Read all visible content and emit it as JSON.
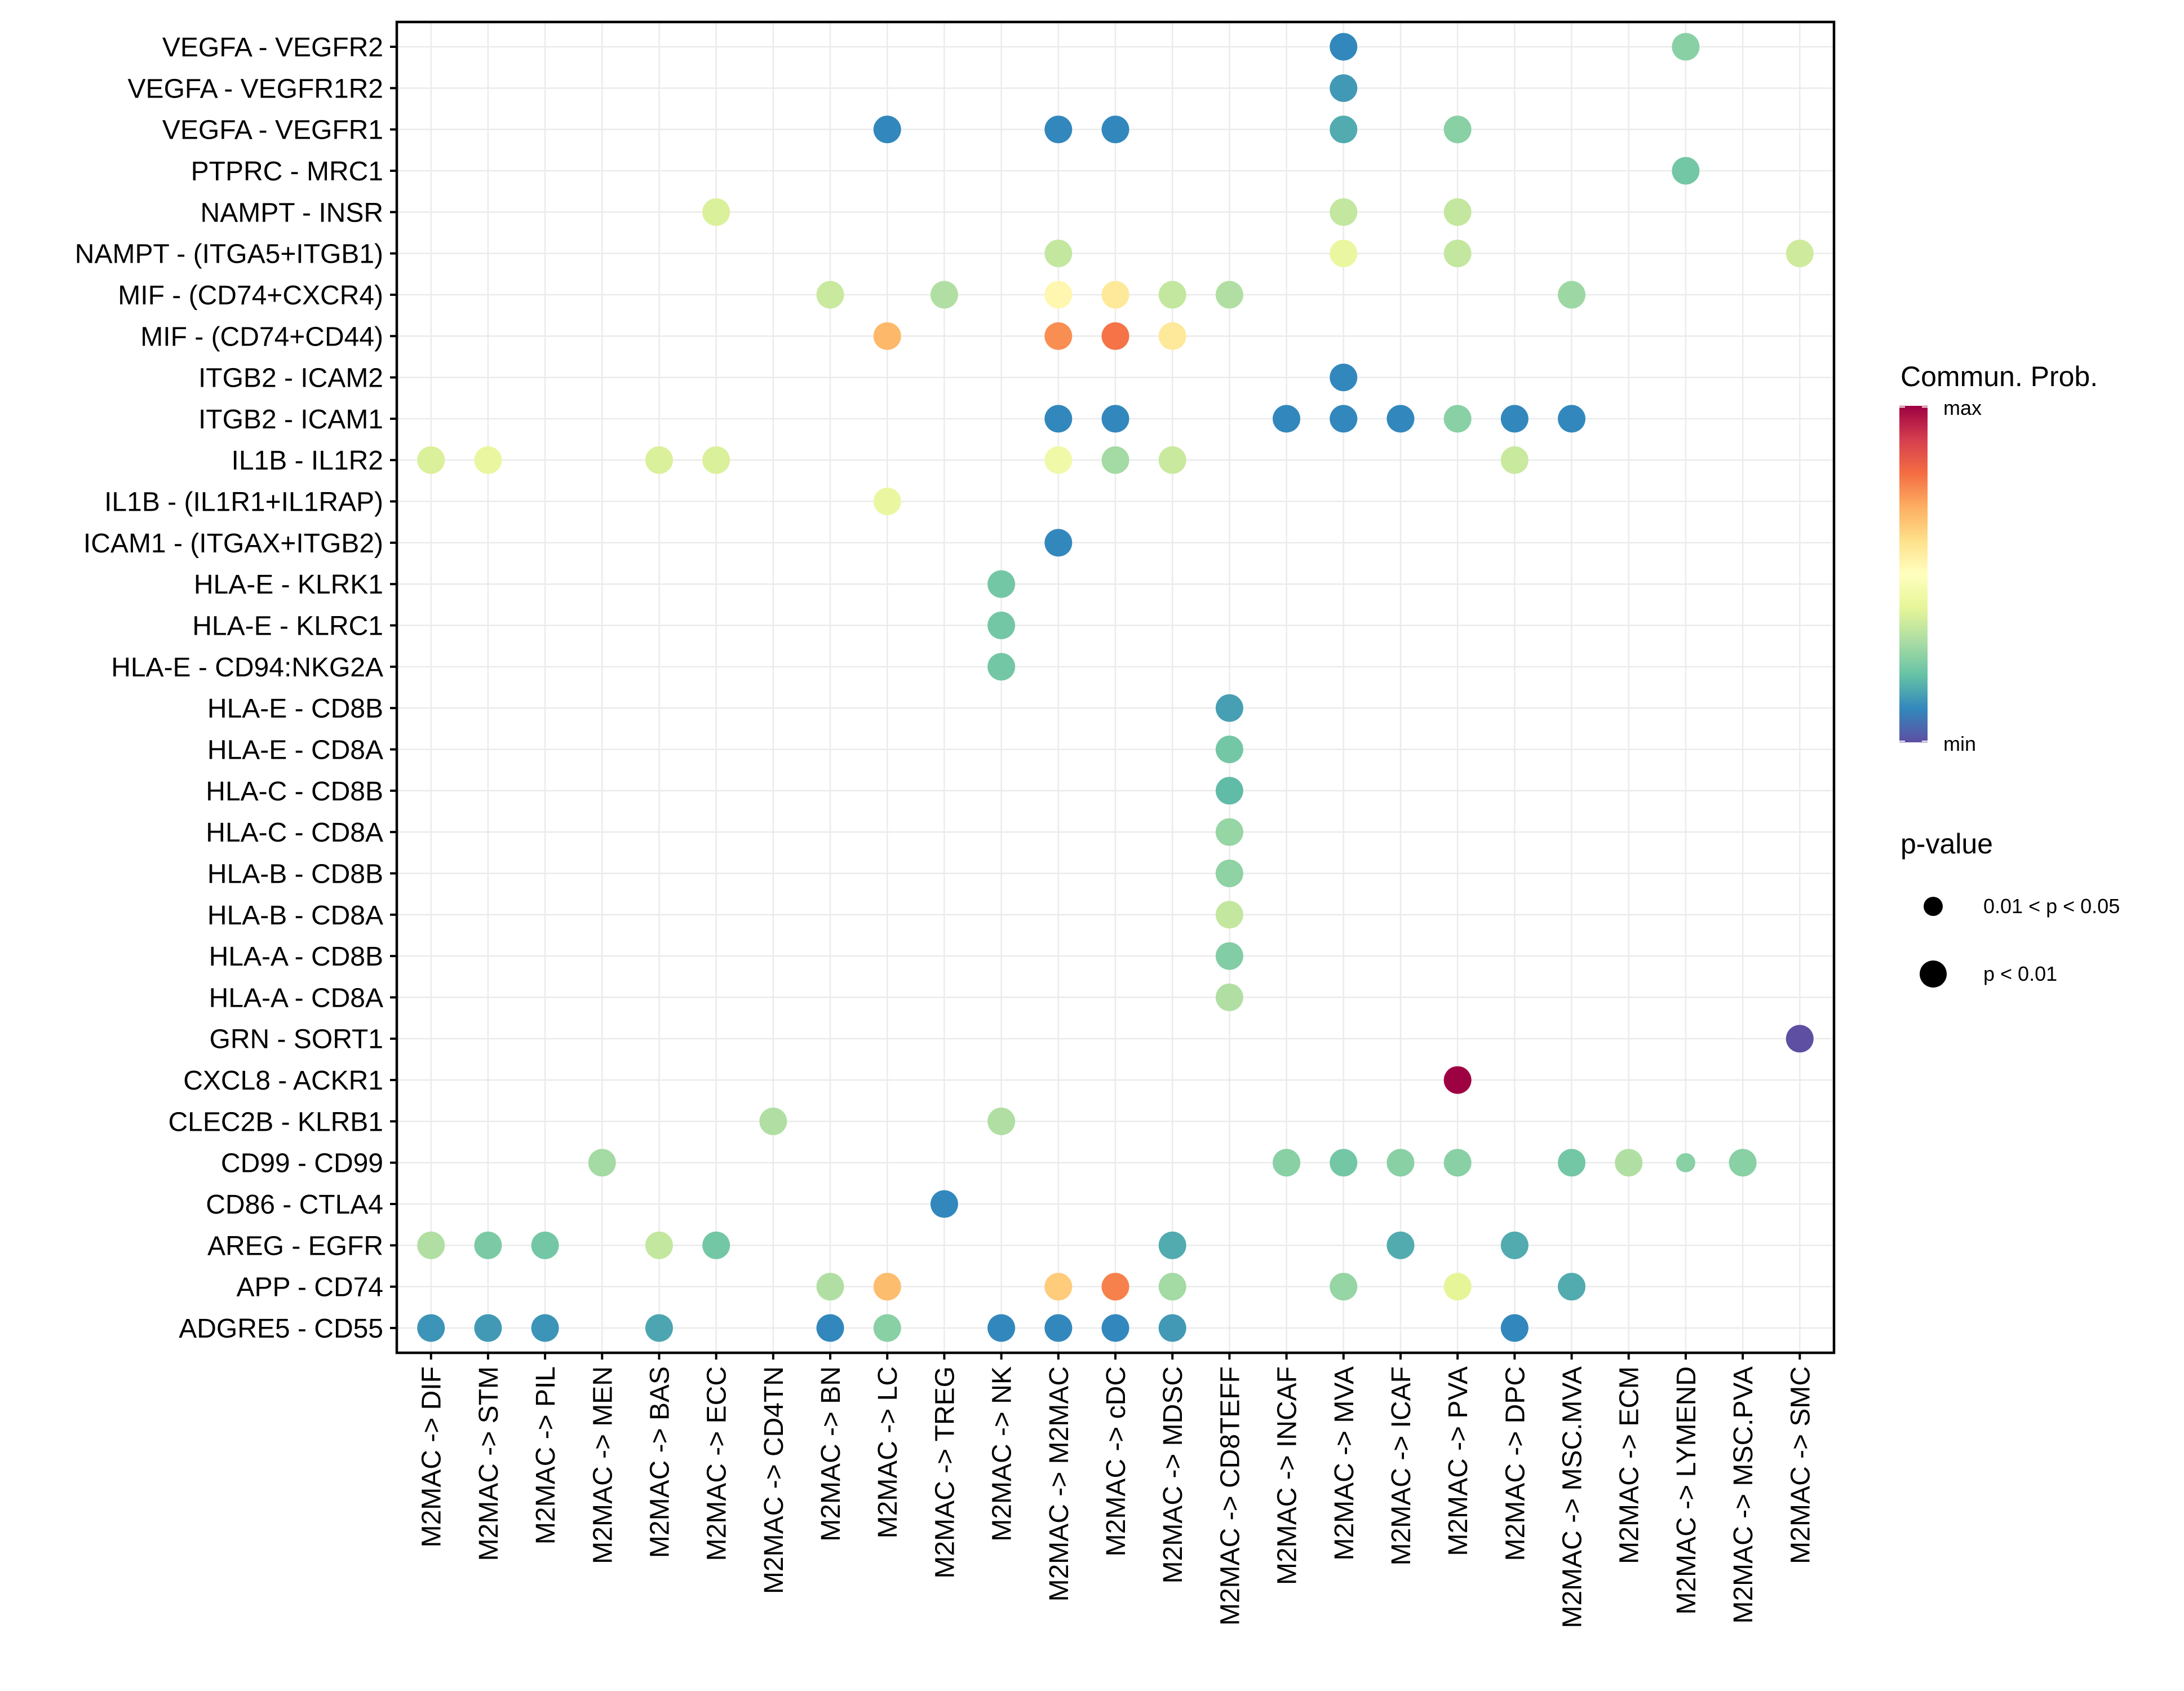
{
  "chart_data": {
    "type": "scatter",
    "subtype": "dot-plot",
    "title": "",
    "xlabel": "",
    "ylabel": "",
    "grid": true,
    "x_categories": [
      "M2MAC -> DIF",
      "M2MAC -> STM",
      "M2MAC -> PIL",
      "M2MAC -> MEN",
      "M2MAC -> BAS",
      "M2MAC -> ECC",
      "M2MAC -> CD4TN",
      "M2MAC -> BN",
      "M2MAC -> LC",
      "M2MAC -> TREG",
      "M2MAC -> NK",
      "M2MAC -> M2MAC",
      "M2MAC -> cDC",
      "M2MAC -> MDSC",
      "M2MAC -> CD8TEFF",
      "M2MAC -> INCAF",
      "M2MAC -> MVA",
      "M2MAC -> ICAF",
      "M2MAC -> PVA",
      "M2MAC -> DPC",
      "M2MAC -> MSC.MVA",
      "M2MAC -> ECM",
      "M2MAC -> LYMEND",
      "M2MAC -> MSC.PVA",
      "M2MAC -> SMC"
    ],
    "y_categories_top_to_bottom": [
      "VEGFA - VEGFR2",
      "VEGFA - VEGFR1R2",
      "VEGFA - VEGFR1",
      "PTPRC - MRC1",
      "NAMPT - INSR",
      "NAMPT - (ITGA5+ITGB1)",
      "MIF - (CD74+CXCR4)",
      "MIF - (CD74+CD44)",
      "ITGB2 - ICAM2",
      "ITGB2 - ICAM1",
      "IL1B - IL1R2",
      "IL1B - (IL1R1+IL1RAP)",
      "ICAM1 - (ITGAX+ITGB2)",
      "HLA-E - KLRK1",
      "HLA-E - KLRC1",
      "HLA-E - CD94:NKG2A",
      "HLA-E - CD8B",
      "HLA-E - CD8A",
      "HLA-C - CD8B",
      "HLA-C - CD8A",
      "HLA-B - CD8B",
      "HLA-B - CD8A",
      "HLA-A - CD8B",
      "HLA-A - CD8A",
      "GRN - SORT1",
      "CXCL8 - ACKR1",
      "CLEC2B - KLRB1",
      "CD99 - CD99",
      "CD86 - CTLA4",
      "AREG - EGFR",
      "APP - CD74",
      "ADGRE5 - CD55"
    ],
    "value_scale": {
      "name": "Commun. Prob.",
      "min_label": "min",
      "max_label": "max",
      "range": [
        0,
        1
      ],
      "palette": [
        "#5E4FA2",
        "#3288BD",
        "#66C2A5",
        "#ABDDA4",
        "#E6F598",
        "#FFFFBF",
        "#FEE08B",
        "#FDAE61",
        "#F46D43",
        "#D53E4F",
        "#9E0142"
      ]
    },
    "pvalue_legend": {
      "title": "p-value",
      "entries": [
        {
          "label": "0.01 < p < 0.05",
          "class": "p05"
        },
        {
          "label": "p < 0.01",
          "class": "p01"
        }
      ]
    },
    "points_columns": [
      "y_category",
      "x_category",
      "commun_prob_relative",
      "pvalue_class"
    ],
    "points": [
      [
        "VEGFA - VEGFR2",
        "M2MAC -> MVA",
        0.1,
        "p01"
      ],
      [
        "VEGFA - VEGFR2",
        "M2MAC -> LYMEND",
        0.25,
        "p01"
      ],
      [
        "VEGFA - VEGFR1R2",
        "M2MAC -> MVA",
        0.13,
        "p01"
      ],
      [
        "VEGFA - VEGFR1",
        "M2MAC -> LC",
        0.1,
        "p01"
      ],
      [
        "VEGFA - VEGFR1",
        "M2MAC -> M2MAC",
        0.1,
        "p01"
      ],
      [
        "VEGFA - VEGFR1",
        "M2MAC -> cDC",
        0.1,
        "p01"
      ],
      [
        "VEGFA - VEGFR1",
        "M2MAC -> MVA",
        0.16,
        "p01"
      ],
      [
        "VEGFA - VEGFR1",
        "M2MAC -> PVA",
        0.25,
        "p01"
      ],
      [
        "PTPRC - MRC1",
        "M2MAC -> LYMEND",
        0.22,
        "p01"
      ],
      [
        "NAMPT - INSR",
        "M2MAC -> ECC",
        0.38,
        "p01"
      ],
      [
        "NAMPT - INSR",
        "M2MAC -> MVA",
        0.34,
        "p01"
      ],
      [
        "NAMPT - INSR",
        "M2MAC -> PVA",
        0.34,
        "p01"
      ],
      [
        "NAMPT - (ITGA5+ITGB1)",
        "M2MAC -> M2MAC",
        0.34,
        "p01"
      ],
      [
        "NAMPT - (ITGA5+ITGB1)",
        "M2MAC -> MVA",
        0.42,
        "p01"
      ],
      [
        "NAMPT - (ITGA5+ITGB1)",
        "M2MAC -> PVA",
        0.34,
        "p01"
      ],
      [
        "NAMPT - (ITGA5+ITGB1)",
        "M2MAC -> SMC",
        0.36,
        "p01"
      ],
      [
        "MIF - (CD74+CXCR4)",
        "M2MAC -> BN",
        0.35,
        "p01"
      ],
      [
        "MIF - (CD74+CXCR4)",
        "M2MAC -> TREG",
        0.31,
        "p01"
      ],
      [
        "MIF - (CD74+CXCR4)",
        "M2MAC -> M2MAC",
        0.53,
        "p01"
      ],
      [
        "MIF - (CD74+CXCR4)",
        "M2MAC -> cDC",
        0.57,
        "p01"
      ],
      [
        "MIF - (CD74+CXCR4)",
        "M2MAC -> MDSC",
        0.34,
        "p01"
      ],
      [
        "MIF - (CD74+CXCR4)",
        "M2MAC -> CD8TEFF",
        0.31,
        "p01"
      ],
      [
        "MIF - (CD74+CXCR4)",
        "M2MAC -> MSC.MVA",
        0.28,
        "p01"
      ],
      [
        "MIF - (CD74+CD44)",
        "M2MAC -> LC",
        0.68,
        "p01"
      ],
      [
        "MIF - (CD74+CD44)",
        "M2MAC -> M2MAC",
        0.75,
        "p01"
      ],
      [
        "MIF - (CD74+CD44)",
        "M2MAC -> cDC",
        0.79,
        "p01"
      ],
      [
        "MIF - (CD74+CD44)",
        "M2MAC -> MDSC",
        0.57,
        "p01"
      ],
      [
        "ITGB2 - ICAM2",
        "M2MAC -> MVA",
        0.1,
        "p01"
      ],
      [
        "ITGB2 - ICAM1",
        "M2MAC -> M2MAC",
        0.1,
        "p01"
      ],
      [
        "ITGB2 - ICAM1",
        "M2MAC -> cDC",
        0.1,
        "p01"
      ],
      [
        "ITGB2 - ICAM1",
        "M2MAC -> INCAF",
        0.1,
        "p01"
      ],
      [
        "ITGB2 - ICAM1",
        "M2MAC -> MVA",
        0.1,
        "p01"
      ],
      [
        "ITGB2 - ICAM1",
        "M2MAC -> ICAF",
        0.1,
        "p01"
      ],
      [
        "ITGB2 - ICAM1",
        "M2MAC -> PVA",
        0.25,
        "p01"
      ],
      [
        "ITGB2 - ICAM1",
        "M2MAC -> DPC",
        0.1,
        "p01"
      ],
      [
        "ITGB2 - ICAM1",
        "M2MAC -> MSC.MVA",
        0.1,
        "p01"
      ],
      [
        "IL1B - IL1R2",
        "M2MAC -> DIF",
        0.38,
        "p01"
      ],
      [
        "IL1B - IL1R2",
        "M2MAC -> STM",
        0.42,
        "p01"
      ],
      [
        "IL1B - IL1R2",
        "M2MAC -> BAS",
        0.38,
        "p01"
      ],
      [
        "IL1B - IL1R2",
        "M2MAC -> ECC",
        0.38,
        "p01"
      ],
      [
        "IL1B - IL1R2",
        "M2MAC -> M2MAC",
        0.44,
        "p01"
      ],
      [
        "IL1B - IL1R2",
        "M2MAC -> cDC",
        0.29,
        "p01"
      ],
      [
        "IL1B - IL1R2",
        "M2MAC -> MDSC",
        0.35,
        "p01"
      ],
      [
        "IL1B - IL1R2",
        "M2MAC -> DPC",
        0.35,
        "p01"
      ],
      [
        "IL1B - (IL1R1+IL1RAP)",
        "M2MAC -> LC",
        0.42,
        "p01"
      ],
      [
        "ICAM1 - (ITGAX+ITGB2)",
        "M2MAC -> M2MAC",
        0.1,
        "p01"
      ],
      [
        "HLA-E - KLRK1",
        "M2MAC -> NK",
        0.22,
        "p01"
      ],
      [
        "HLA-E - KLRC1",
        "M2MAC -> NK",
        0.22,
        "p01"
      ],
      [
        "HLA-E - CD94:NKG2A",
        "M2MAC -> NK",
        0.22,
        "p01"
      ],
      [
        "HLA-E - CD8B",
        "M2MAC -> CD8TEFF",
        0.14,
        "p01"
      ],
      [
        "HLA-E - CD8A",
        "M2MAC -> CD8TEFF",
        0.22,
        "p01"
      ],
      [
        "HLA-C - CD8B",
        "M2MAC -> CD8TEFF",
        0.19,
        "p01"
      ],
      [
        "HLA-C - CD8A",
        "M2MAC -> CD8TEFF",
        0.27,
        "p01"
      ],
      [
        "HLA-B - CD8B",
        "M2MAC -> CD8TEFF",
        0.26,
        "p01"
      ],
      [
        "HLA-B - CD8A",
        "M2MAC -> CD8TEFF",
        0.34,
        "p01"
      ],
      [
        "HLA-A - CD8B",
        "M2MAC -> CD8TEFF",
        0.24,
        "p01"
      ],
      [
        "HLA-A - CD8A",
        "M2MAC -> CD8TEFF",
        0.31,
        "p01"
      ],
      [
        "GRN - SORT1",
        "M2MAC -> SMC",
        0.0,
        "p01"
      ],
      [
        "CXCL8 - ACKR1",
        "M2MAC -> PVA",
        1.0,
        "p01"
      ],
      [
        "CLEC2B - KLRB1",
        "M2MAC -> CD4TN",
        0.31,
        "p01"
      ],
      [
        "CLEC2B - KLRB1",
        "M2MAC -> NK",
        0.31,
        "p01"
      ],
      [
        "CD99 - CD99",
        "M2MAC -> MEN",
        0.29,
        "p01"
      ],
      [
        "CD99 - CD99",
        "M2MAC -> INCAF",
        0.25,
        "p01"
      ],
      [
        "CD99 - CD99",
        "M2MAC -> MVA",
        0.22,
        "p01"
      ],
      [
        "CD99 - CD99",
        "M2MAC -> ICAF",
        0.25,
        "p01"
      ],
      [
        "CD99 - CD99",
        "M2MAC -> PVA",
        0.25,
        "p01"
      ],
      [
        "CD99 - CD99",
        "M2MAC -> MSC.MVA",
        0.22,
        "p01"
      ],
      [
        "CD99 - CD99",
        "M2MAC -> ECM",
        0.31,
        "p01"
      ],
      [
        "CD99 - CD99",
        "M2MAC -> LYMEND",
        0.25,
        "p05"
      ],
      [
        "CD99 - CD99",
        "M2MAC -> MSC.PVA",
        0.25,
        "p01"
      ],
      [
        "CD86 - CTLA4",
        "M2MAC -> TREG",
        0.1,
        "p01"
      ],
      [
        "AREG - EGFR",
        "M2MAC -> DIF",
        0.31,
        "p01"
      ],
      [
        "AREG - EGFR",
        "M2MAC -> STM",
        0.23,
        "p01"
      ],
      [
        "AREG - EGFR",
        "M2MAC -> PIL",
        0.22,
        "p01"
      ],
      [
        "AREG - EGFR",
        "M2MAC -> BAS",
        0.34,
        "p01"
      ],
      [
        "AREG - EGFR",
        "M2MAC -> ECC",
        0.22,
        "p01"
      ],
      [
        "AREG - EGFR",
        "M2MAC -> MDSC",
        0.16,
        "p01"
      ],
      [
        "AREG - EGFR",
        "M2MAC -> ICAF",
        0.16,
        "p01"
      ],
      [
        "AREG - EGFR",
        "M2MAC -> DPC",
        0.16,
        "p01"
      ],
      [
        "APP - CD74",
        "M2MAC -> BN",
        0.31,
        "p01"
      ],
      [
        "APP - CD74",
        "M2MAC -> LC",
        0.67,
        "p01"
      ],
      [
        "APP - CD74",
        "M2MAC -> M2MAC",
        0.64,
        "p01"
      ],
      [
        "APP - CD74",
        "M2MAC -> cDC",
        0.77,
        "p01"
      ],
      [
        "APP - CD74",
        "M2MAC -> MDSC",
        0.29,
        "p01"
      ],
      [
        "APP - CD74",
        "M2MAC -> MVA",
        0.27,
        "p01"
      ],
      [
        "APP - CD74",
        "M2MAC -> PVA",
        0.4,
        "p01"
      ],
      [
        "APP - CD74",
        "M2MAC -> MSC.MVA",
        0.16,
        "p01"
      ],
      [
        "ADGRE5 - CD55",
        "M2MAC -> DIF",
        0.12,
        "p01"
      ],
      [
        "ADGRE5 - CD55",
        "M2MAC -> STM",
        0.13,
        "p01"
      ],
      [
        "ADGRE5 - CD55",
        "M2MAC -> PIL",
        0.12,
        "p01"
      ],
      [
        "ADGRE5 - CD55",
        "M2MAC -> BAS",
        0.15,
        "p01"
      ],
      [
        "ADGRE5 - CD55",
        "M2MAC -> BN",
        0.1,
        "p01"
      ],
      [
        "ADGRE5 - CD55",
        "M2MAC -> LC",
        0.25,
        "p01"
      ],
      [
        "ADGRE5 - CD55",
        "M2MAC -> NK",
        0.1,
        "p01"
      ],
      [
        "ADGRE5 - CD55",
        "M2MAC -> M2MAC",
        0.1,
        "p01"
      ],
      [
        "ADGRE5 - CD55",
        "M2MAC -> cDC",
        0.1,
        "p01"
      ],
      [
        "ADGRE5 - CD55",
        "M2MAC -> MDSC",
        0.13,
        "p01"
      ],
      [
        "ADGRE5 - CD55",
        "M2MAC -> DPC",
        0.1,
        "p01"
      ]
    ]
  }
}
